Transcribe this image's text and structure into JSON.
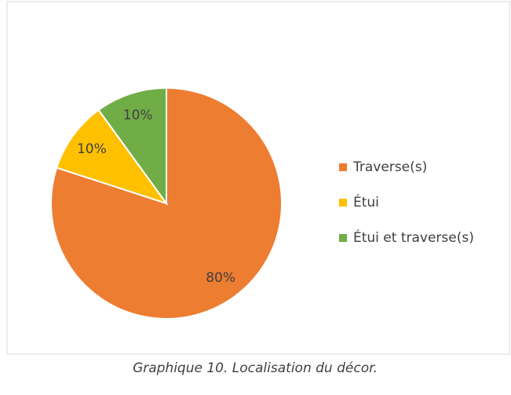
{
  "chart_data": {
    "type": "pie",
    "categories": [
      "Traverse(s)",
      "Étui",
      "Étui et traverse(s)"
    ],
    "values": [
      80,
      10,
      10
    ],
    "value_labels": [
      "80%",
      "10%",
      "10%"
    ],
    "colors": [
      "#ed7d31",
      "#ffc000",
      "#70ad47"
    ],
    "legend": "right",
    "caption": "Graphique 10. Localisation du décor."
  }
}
